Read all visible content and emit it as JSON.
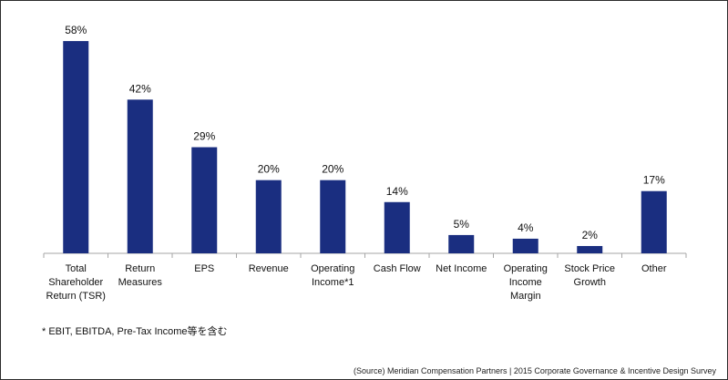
{
  "chart_data": {
    "type": "bar",
    "categories": [
      [
        "Total",
        "Shareholder",
        "Return (TSR)"
      ],
      [
        "Return",
        "Measures"
      ],
      [
        "EPS"
      ],
      [
        "Revenue"
      ],
      [
        "Operating",
        "Income*1"
      ],
      [
        "Cash Flow"
      ],
      [
        "Net Income"
      ],
      [
        "Operating",
        "Income",
        "Margin"
      ],
      [
        "Stock Price",
        "Growth"
      ],
      [
        "Other"
      ]
    ],
    "values": [
      58,
      42,
      29,
      20,
      20,
      14,
      5,
      4,
      2,
      17
    ],
    "data_labels": [
      "58%",
      "42%",
      "29%",
      "20%",
      "20%",
      "14%",
      "5%",
      "4%",
      "2%",
      "17%"
    ],
    "ylim": [
      0,
      62
    ],
    "title": "",
    "xlabel": "",
    "ylabel": "",
    "grid": false,
    "bar_color": "#1a2e80"
  },
  "footnote": "*   EBIT, EBITDA, Pre-Tax Income等を含む",
  "source": "(Source) Meridian Compensation Partners | 2015 Corporate Governance & Incentive Design Survey"
}
